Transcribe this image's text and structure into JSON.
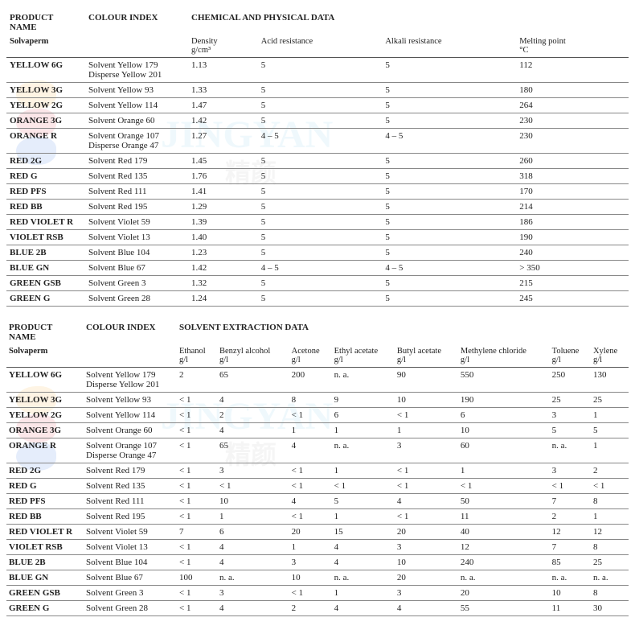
{
  "table1": {
    "header_group": [
      "PRODUCT NAME",
      "COLOUR INDEX",
      "CHEMICAL AND PHYSICAL DATA"
    ],
    "sub_left": "Solvaperm",
    "cols": [
      {
        "label": "Density",
        "unit": "g/cm³"
      },
      {
        "label": "Acid resistance",
        "unit": ""
      },
      {
        "label": "Alkali resistance",
        "unit": ""
      },
      {
        "label": "Melting point",
        "unit": "°C"
      }
    ],
    "rows": [
      {
        "pn": "YELLOW 6G",
        "ci": "Solvent Yellow 179\nDisperse Yellow 201",
        "v": [
          "1.13",
          "5",
          "5",
          "112"
        ]
      },
      {
        "pn": "YELLOW 3G",
        "ci": "Solvent Yellow 93",
        "v": [
          "1.33",
          "5",
          "5",
          "180"
        ]
      },
      {
        "pn": "YELLOW 2G",
        "ci": "Solvent Yellow 114",
        "v": [
          "1.47",
          "5",
          "5",
          "264"
        ]
      },
      {
        "pn": "ORANGE 3G",
        "ci": "Solvent Orange 60",
        "v": [
          "1.42",
          "5",
          "5",
          "230"
        ]
      },
      {
        "pn": "ORANGE R",
        "ci": "Solvent Orange 107\nDisperse Orange 47",
        "v": [
          "1.27",
          "4 – 5",
          "4 – 5",
          "230"
        ]
      },
      {
        "pn": "RED 2G",
        "ci": "Solvent Red 179",
        "v": [
          "1.45",
          "5",
          "5",
          "260"
        ]
      },
      {
        "pn": "RED G",
        "ci": "Solvent Red 135",
        "v": [
          "1.76",
          "5",
          "5",
          "318"
        ]
      },
      {
        "pn": "RED PFS",
        "ci": "Solvent Red 111",
        "v": [
          "1.41",
          "5",
          "5",
          "170"
        ]
      },
      {
        "pn": "RED BB",
        "ci": "Solvent Red 195",
        "v": [
          "1.29",
          "5",
          "5",
          "214"
        ]
      },
      {
        "pn": "RED VIOLET R",
        "ci": "Solvent Violet 59",
        "v": [
          "1.39",
          "5",
          "5",
          "186"
        ]
      },
      {
        "pn": "VIOLET RSB",
        "ci": "Solvent Violet 13",
        "v": [
          "1.40",
          "5",
          "5",
          "190"
        ]
      },
      {
        "pn": "BLUE 2B",
        "ci": "Solvent Blue 104",
        "v": [
          "1.23",
          "5",
          "5",
          "240"
        ]
      },
      {
        "pn": "BLUE GN",
        "ci": "Solvent Blue 67",
        "v": [
          "1.42",
          "4 – 5",
          "4 – 5",
          "> 350"
        ]
      },
      {
        "pn": "GREEN GSB",
        "ci": "Solvent Green 3",
        "v": [
          "1.32",
          "5",
          "5",
          "215"
        ]
      },
      {
        "pn": "GREEN G",
        "ci": "Solvent Green 28",
        "v": [
          "1.24",
          "5",
          "5",
          "245"
        ]
      }
    ]
  },
  "table2": {
    "header_group": [
      "PRODUCT NAME",
      "COLOUR INDEX",
      "SOLVENT EXTRACTION DATA"
    ],
    "sub_left": "Solvaperm",
    "cols": [
      {
        "label": "Ethanol",
        "unit": "g/l"
      },
      {
        "label": "Benzyl alcohol",
        "unit": "g/l"
      },
      {
        "label": "Acetone",
        "unit": "g/l"
      },
      {
        "label": "Ethyl acetate",
        "unit": "g/l"
      },
      {
        "label": "Butyl acetate",
        "unit": "g/l"
      },
      {
        "label": "Methylene chloride",
        "unit": "g/l"
      },
      {
        "label": "Toluene",
        "unit": "g/l"
      },
      {
        "label": "Xylene",
        "unit": "g/l"
      }
    ],
    "rows": [
      {
        "pn": "YELLOW 6G",
        "ci": "Solvent Yellow 179\nDisperse Yellow 201",
        "v": [
          "2",
          "65",
          "200",
          "n. a.",
          "90",
          "550",
          "250",
          "130"
        ]
      },
      {
        "pn": "YELLOW 3G",
        "ci": "Solvent Yellow 93",
        "v": [
          "< 1",
          "4",
          "8",
          "9",
          "10",
          "190",
          "25",
          "25"
        ]
      },
      {
        "pn": "YELLOW 2G",
        "ci": "Solvent Yellow 114",
        "v": [
          "< 1",
          "2",
          "< 1",
          "6",
          "< 1",
          "6",
          "3",
          "1"
        ]
      },
      {
        "pn": "ORANGE 3G",
        "ci": "Solvent Orange 60",
        "v": [
          "< 1",
          "4",
          "1",
          "1",
          "1",
          "10",
          "5",
          "5"
        ]
      },
      {
        "pn": "ORANGE R",
        "ci": "Solvent Orange 107\nDisperse Orange 47",
        "v": [
          "< 1",
          "65",
          "4",
          "n. a.",
          "3",
          "60",
          "n. a.",
          "1"
        ]
      },
      {
        "pn": "RED 2G",
        "ci": "Solvent Red 179",
        "v": [
          "< 1",
          "3",
          "< 1",
          "1",
          "< 1",
          "1",
          "3",
          "2"
        ]
      },
      {
        "pn": "RED G",
        "ci": "Solvent Red 135",
        "v": [
          "< 1",
          "< 1",
          "< 1",
          "< 1",
          "< 1",
          "< 1",
          "< 1",
          "< 1"
        ]
      },
      {
        "pn": "RED PFS",
        "ci": "Solvent Red 111",
        "v": [
          "< 1",
          "10",
          "4",
          "5",
          "4",
          "50",
          "7",
          "8"
        ]
      },
      {
        "pn": "RED BB",
        "ci": "Solvent Red 195",
        "v": [
          "< 1",
          "1",
          "< 1",
          "1",
          "< 1",
          "11",
          "2",
          "1"
        ]
      },
      {
        "pn": "RED VIOLET R",
        "ci": "Solvent Violet 59",
        "v": [
          "7",
          "6",
          "20",
          "15",
          "20",
          "40",
          "12",
          "12"
        ]
      },
      {
        "pn": "VIOLET RSB",
        "ci": "Solvent Violet 13",
        "v": [
          "< 1",
          "4",
          "1",
          "4",
          "3",
          "12",
          "7",
          "8"
        ]
      },
      {
        "pn": "BLUE 2B",
        "ci": "Solvent Blue 104",
        "v": [
          "< 1",
          "4",
          "3",
          "4",
          "10",
          "240",
          "85",
          "25"
        ]
      },
      {
        "pn": "BLUE GN",
        "ci": "Solvent Blue 67",
        "v": [
          "100",
          "n. a.",
          "10",
          "n. a.",
          "20",
          "n. a.",
          "n. a.",
          "n. a."
        ]
      },
      {
        "pn": "GREEN GSB",
        "ci": "Solvent Green 3",
        "v": [
          "< 1",
          "3",
          "< 1",
          "1",
          "3",
          "20",
          "10",
          "8"
        ]
      },
      {
        "pn": "GREEN G",
        "ci": "Solvent Green 28",
        "v": [
          "< 1",
          "4",
          "2",
          "4",
          "4",
          "55",
          "11",
          "30"
        ]
      }
    ]
  }
}
